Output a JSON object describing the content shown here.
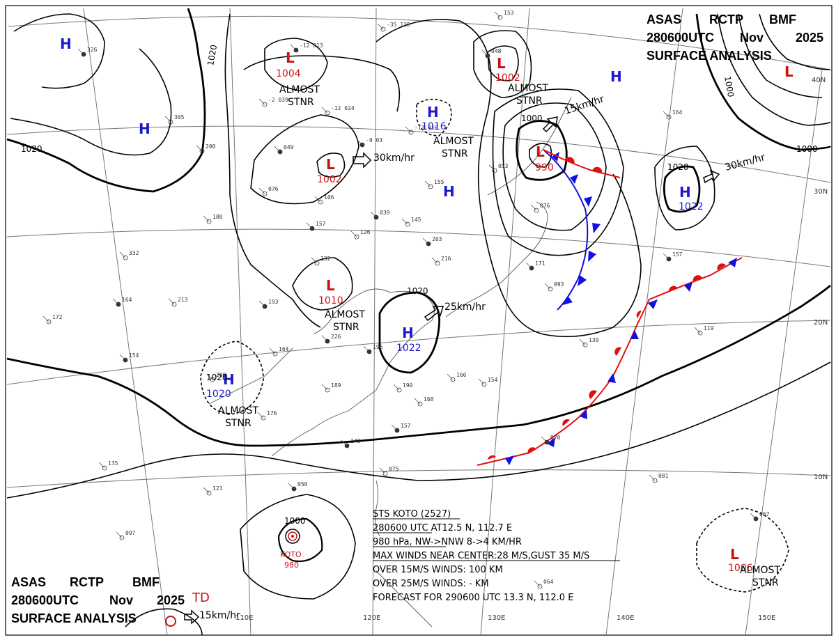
{
  "header_top": {
    "line1": [
      "ASAS",
      "RCTP",
      "BMF"
    ],
    "line2": [
      "280600UTC",
      "Nov",
      "2025"
    ],
    "line3": "SURFACE ANALYSIS"
  },
  "header_bottom": {
    "line1": [
      "ASAS",
      "RCTP",
      "BMF"
    ],
    "line2": [
      "280600UTC",
      "Nov",
      "2025"
    ],
    "line3": "SURFACE ANALYSIS",
    "td_label": "TD",
    "td_motion": "15km/hr"
  },
  "colors": {
    "high": "#1a1acc",
    "low": "#cc1111",
    "cold_front": "#1010e0",
    "warm_front": "#e01010",
    "isobar": "#000000",
    "grid": "#777777"
  },
  "pressure_centers": [
    {
      "type": "H",
      "value": ""
    },
    {
      "type": "H",
      "value": ""
    },
    {
      "type": "L",
      "value": "1004"
    },
    {
      "type": "L",
      "value": "1002"
    },
    {
      "type": "L",
      "value": "1010"
    },
    {
      "type": "H",
      "value": "1016"
    },
    {
      "type": "H",
      "value": ""
    },
    {
      "type": "H",
      "value": "1022"
    },
    {
      "type": "H",
      "value": "1020"
    },
    {
      "type": "L",
      "value": "1002"
    },
    {
      "type": "L",
      "value": "990"
    },
    {
      "type": "H",
      "value": "1022"
    },
    {
      "type": "H",
      "value": ""
    },
    {
      "type": "L",
      "value": ""
    },
    {
      "type": "L",
      "value": "1006"
    }
  ],
  "almost_stnr_label": [
    "ALMOST",
    "STNR"
  ],
  "motions": [
    "30km/hr",
    "25km/hr",
    "15km/hr",
    "30km/hr"
  ],
  "isobar_labels": [
    "1020",
    "1020",
    "1020",
    "1020",
    "1000",
    "1020",
    "1000",
    "1000",
    "1000"
  ],
  "latitudes": [
    "40N",
    "30N",
    "20N",
    "10N"
  ],
  "longitudes": [
    "110E",
    "120E",
    "130E",
    "140E",
    "150E"
  ],
  "typhoon": {
    "name": "KOTO",
    "pressure": "980",
    "lines": [
      "STS  KOTO  (2527)",
      "280600 UTC  AT12.5 N, 112.7 E",
      "980 hPa, NW->NNW  8->4 KM/HR",
      "MAX WINDS NEAR CENTER:28 M/S,GUST 35 M/S",
      "OVER 15M/S WINDS: 100 KM",
      "OVER 25M/S WINDS: - KM",
      "FORECAST FOR 290600 UTC 13.3 N, 112.0 E"
    ]
  },
  "station_plots": [
    "326",
    "305",
    "200",
    "-12 013",
    "-2 039",
    "-12 024",
    "049",
    "076",
    "106",
    "157",
    "180",
    "332",
    "164",
    "213",
    "172",
    "193",
    "132",
    "126",
    "039",
    "145",
    "155",
    "203",
    "216",
    "153",
    "048",
    "053",
    "076",
    "171",
    "093",
    "164",
    "157",
    "139",
    "119",
    "154",
    "200",
    "164",
    "226",
    "176",
    "189",
    "196",
    "190",
    "168",
    "157",
    "166",
    "154",
    "140",
    "135",
    "121",
    "050",
    "075",
    "097",
    "070",
    "081",
    "064",
    "067",
    "-35 138",
    "-13 016",
    "-9 03"
  ]
}
